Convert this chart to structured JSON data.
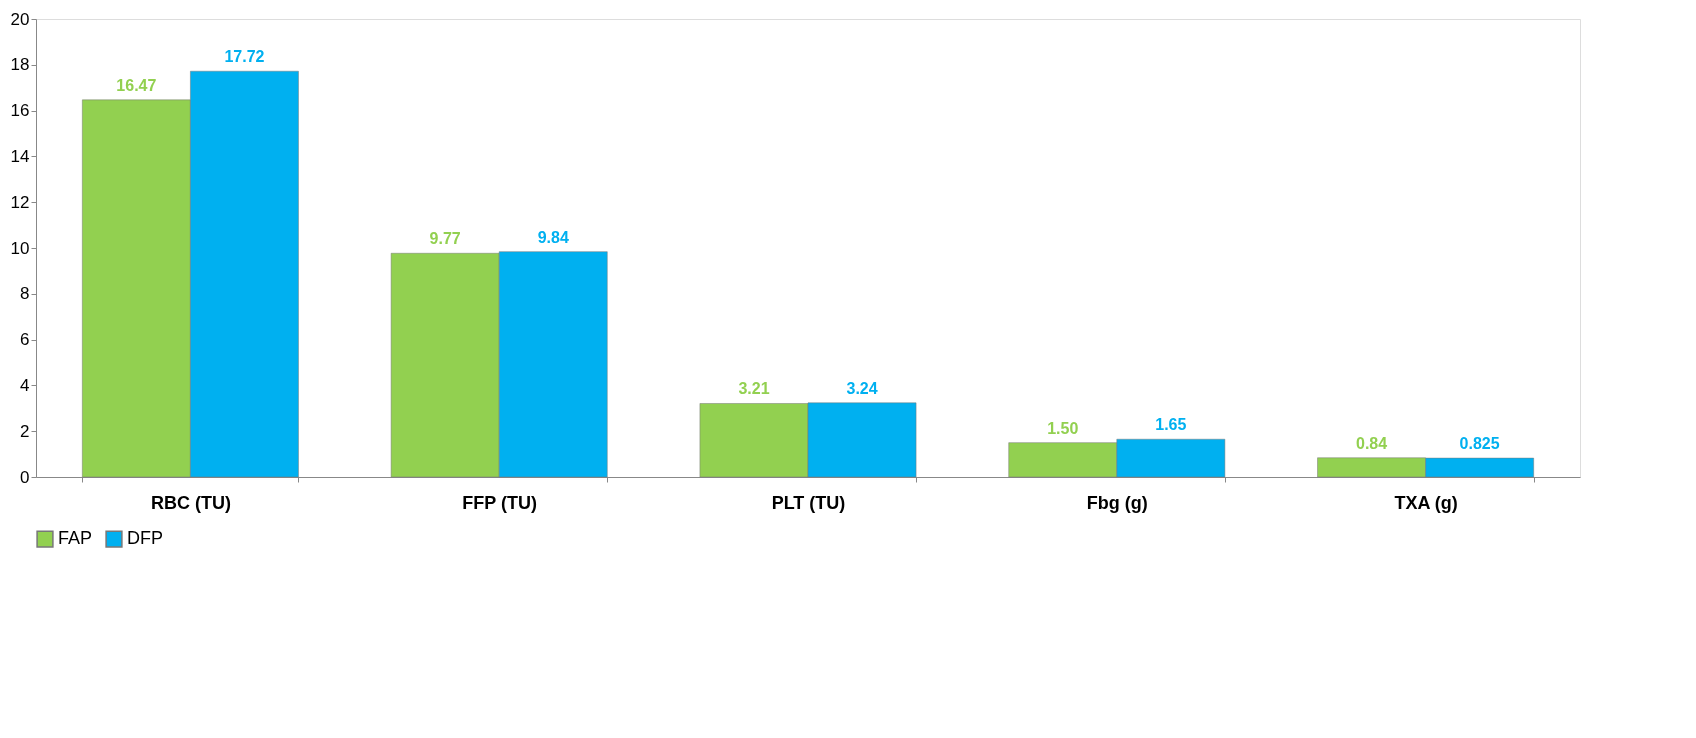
{
  "chart_data": {
    "type": "bar",
    "categories": [
      "RBC (TU)",
      "FFP (TU)",
      "PLT (TU)",
      "Fbg (g)",
      "TXA (g)"
    ],
    "series": [
      {
        "name": "FAP",
        "color": "#92d050",
        "values": [
          16.47,
          9.77,
          3.21,
          1.5,
          0.84
        ],
        "value_labels": [
          "16.47",
          "9.77",
          "3.21",
          "1.50",
          "0.84"
        ]
      },
      {
        "name": "DFP",
        "color": "#00b0f0",
        "values": [
          17.72,
          9.84,
          3.24,
          1.65,
          0.825
        ],
        "value_labels": [
          "17.72",
          "9.84",
          "3.24",
          "1.65",
          "0.825"
        ]
      }
    ],
    "ylim": [
      0,
      20
    ],
    "yticks": [
      0,
      2,
      4,
      6,
      8,
      10,
      12,
      14,
      16,
      18,
      20
    ],
    "grid": false,
    "legend": "bottom"
  }
}
